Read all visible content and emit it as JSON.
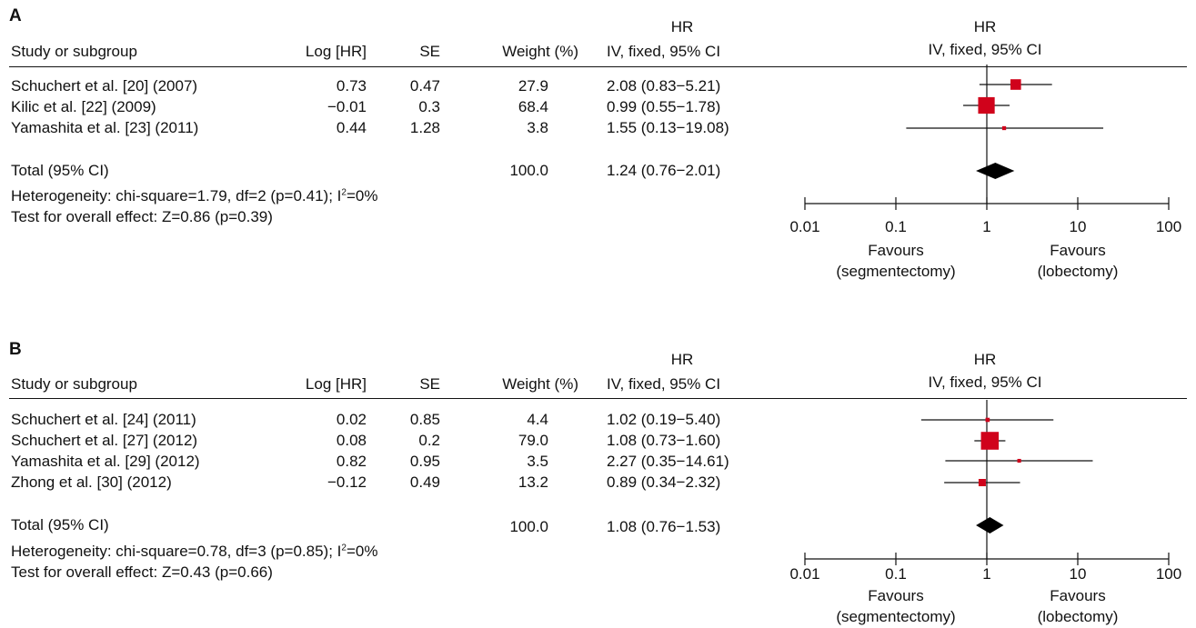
{
  "panels": [
    {
      "id": "A",
      "header": {
        "study": "Study or subgroup",
        "loghr": "Log [HR]",
        "se": "SE",
        "weight": "Weight (%)",
        "hr_top": "HR",
        "hr_bottom": "IV, fixed, 95% CI",
        "plot_top": "HR",
        "plot_bottom": "IV, fixed, 95% CI"
      },
      "studies": [
        {
          "name": "Schuchert et al. [20] (2007)",
          "loghr": "0.73",
          "se": "0.47",
          "weight": "27.9",
          "hr_ci": "2.08 (0.83−5.21)"
        },
        {
          "name": "Kilic et al. [22] (2009)",
          "loghr": "−0.01",
          "se": "0.3",
          "weight": "68.4",
          "hr_ci": "0.99 (0.55−1.78)"
        },
        {
          "name": "Yamashita et al. [23] (2011)",
          "loghr": "0.44",
          "se": "1.28",
          "weight": "3.8",
          "hr_ci": "1.55 (0.13−19.08)"
        }
      ],
      "total": {
        "label": "Total (95% CI)",
        "weight": "100.0",
        "hr_ci": "1.24 (0.76−2.01)"
      },
      "heterogeneity": {
        "prefix": "Heterogeneity: chi-square=1.79, df=2 (p=0.41); I",
        "sup": "2",
        "suffix": "=0%"
      },
      "overall": "Test for overall effect: Z=0.86 (p=0.39)",
      "ticks": [
        "0.01",
        "0.1",
        "1",
        "10",
        "100"
      ],
      "favours_left": [
        "Favours",
        "(segmentectomy)"
      ],
      "favours_right": [
        "Favours",
        "(lobectomy)"
      ]
    },
    {
      "id": "B",
      "header": {
        "study": "Study or subgroup",
        "loghr": "Log [HR]",
        "se": "SE",
        "weight": "Weight (%)",
        "hr_top": "HR",
        "hr_bottom": "IV, fixed, 95% CI",
        "plot_top": "HR",
        "plot_bottom": "IV, fixed, 95% CI"
      },
      "studies": [
        {
          "name": "Schuchert et al. [24] (2011)",
          "loghr": "0.02",
          "se": "0.85",
          "weight": "4.4",
          "hr_ci": "1.02 (0.19−5.40)"
        },
        {
          "name": "Schuchert et al. [27] (2012)",
          "loghr": "0.08",
          "se": "0.2",
          "weight": "79.0",
          "hr_ci": "1.08 (0.73−1.60)"
        },
        {
          "name": "Yamashita et al. [29] (2012)",
          "loghr": "0.82",
          "se": "0.95",
          "weight": "3.5",
          "hr_ci": "2.27 (0.35−14.61)"
        },
        {
          "name": "Zhong et al. [30] (2012)",
          "loghr": "−0.12",
          "se": "0.49",
          "weight": "13.2",
          "hr_ci": "0.89 (0.34−2.32)"
        }
      ],
      "total": {
        "label": "Total (95% CI)",
        "weight": "100.0",
        "hr_ci": "1.08 (0.76−1.53)"
      },
      "heterogeneity": {
        "prefix": "Heterogeneity: chi-square=0.78, df=3 (p=0.85); I",
        "sup": "2",
        "suffix": "=0%"
      },
      "overall": "Test for overall effect: Z=0.43 (p=0.66)",
      "ticks": [
        "0.01",
        "0.1",
        "1",
        "10",
        "100"
      ],
      "favours_left": [
        "Favours",
        "(segmentectomy)"
      ],
      "favours_right": [
        "Favours",
        "(lobectomy)"
      ]
    }
  ],
  "colors": {
    "study_marker": "#d0021b",
    "total_diamond": "#000000",
    "lines": "#111111"
  },
  "chart_data": [
    {
      "type": "forest",
      "panel": "A",
      "x_scale": "log",
      "xlim": [
        0.01,
        100
      ],
      "ticks": [
        0.01,
        0.1,
        1,
        10,
        100
      ],
      "studies": [
        {
          "name": "Schuchert et al. [20] (2007)",
          "hr": 2.08,
          "ci_low": 0.83,
          "ci_high": 5.21,
          "weight": 27.9
        },
        {
          "name": "Kilic et al. [22] (2009)",
          "hr": 0.99,
          "ci_low": 0.55,
          "ci_high": 1.78,
          "weight": 68.4
        },
        {
          "name": "Yamashita et al. [23] (2011)",
          "hr": 1.55,
          "ci_low": 0.13,
          "ci_high": 19.08,
          "weight": 3.8
        }
      ],
      "total": {
        "hr": 1.24,
        "ci_low": 0.76,
        "ci_high": 2.01,
        "weight": 100.0
      }
    },
    {
      "type": "forest",
      "panel": "B",
      "x_scale": "log",
      "xlim": [
        0.01,
        100
      ],
      "ticks": [
        0.01,
        0.1,
        1,
        10,
        100
      ],
      "studies": [
        {
          "name": "Schuchert et al. [24] (2011)",
          "hr": 1.02,
          "ci_low": 0.19,
          "ci_high": 5.4,
          "weight": 4.4
        },
        {
          "name": "Schuchert et al. [27] (2012)",
          "hr": 1.08,
          "ci_low": 0.73,
          "ci_high": 1.6,
          "weight": 79.0
        },
        {
          "name": "Yamashita et al. [29] (2012)",
          "hr": 2.27,
          "ci_low": 0.35,
          "ci_high": 14.61,
          "weight": 3.5
        },
        {
          "name": "Zhong et al. [30] (2012)",
          "hr": 0.89,
          "ci_low": 0.34,
          "ci_high": 2.32,
          "weight": 13.2
        }
      ],
      "total": {
        "hr": 1.08,
        "ci_low": 0.76,
        "ci_high": 1.53,
        "weight": 100.0
      }
    }
  ]
}
